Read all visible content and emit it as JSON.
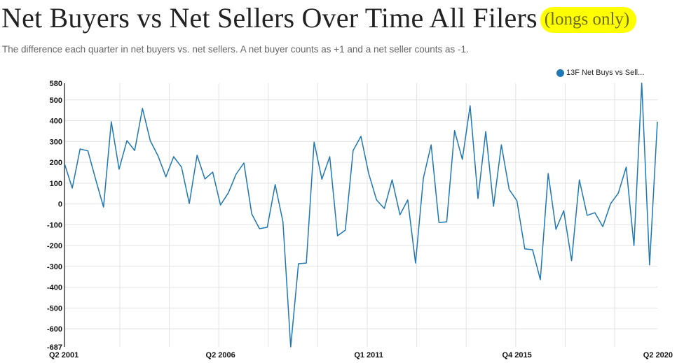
{
  "title": "Net Buyers vs Net Sellers Over Time All Filers",
  "title_highlight": "(longs only)",
  "subtitle": "The difference each quarter in net buyers vs. net sellers. A net buyer counts as +1 and a net seller counts as -1.",
  "colors": {
    "series": "#1f77b4",
    "highlight": "#ffff00",
    "grid": "#e3e3e3"
  },
  "chart_data": {
    "type": "line",
    "title": "Net Buyers vs Net Sellers Over Time All Filers (longs only)",
    "xlabel": "",
    "ylabel": "",
    "ylim": [
      -687,
      580
    ],
    "y_ticks": [
      580,
      500,
      400,
      300,
      200,
      100,
      0,
      -100,
      -200,
      -300,
      -400,
      -500,
      -600,
      -687
    ],
    "x_ticks": [
      {
        "index": 0,
        "label": "Q2 2001"
      },
      {
        "index": 20,
        "label": "Q2 2006"
      },
      {
        "index": 39,
        "label": "Q1 2011"
      },
      {
        "index": 58,
        "label": "Q4 2015"
      },
      {
        "index": 76,
        "label": "Q2 2020"
      }
    ],
    "grid": true,
    "legend": {
      "placement": "top-right",
      "label": "13F Net Buys vs Sell..."
    },
    "series": [
      {
        "name": "13F Net Buys vs Sell...",
        "values": [
          194,
          76,
          264,
          255,
          118,
          -15,
          395,
          167,
          304,
          257,
          459,
          304,
          230,
          130,
          227,
          177,
          2,
          234,
          120,
          153,
          -5,
          53,
          143,
          197,
          -48,
          -119,
          -112,
          93,
          -85,
          -687,
          -287,
          -284,
          297,
          119,
          227,
          -153,
          -126,
          257,
          325,
          146,
          19,
          -22,
          116,
          -52,
          19,
          -284,
          124,
          284,
          -89,
          -86,
          352,
          214,
          472,
          26,
          348,
          -11,
          284,
          70,
          15,
          -216,
          -220,
          -364,
          146,
          -122,
          -32,
          -273,
          116,
          -55,
          -42,
          -109,
          1,
          52,
          177,
          -200,
          580,
          -293,
          395
        ]
      }
    ]
  }
}
